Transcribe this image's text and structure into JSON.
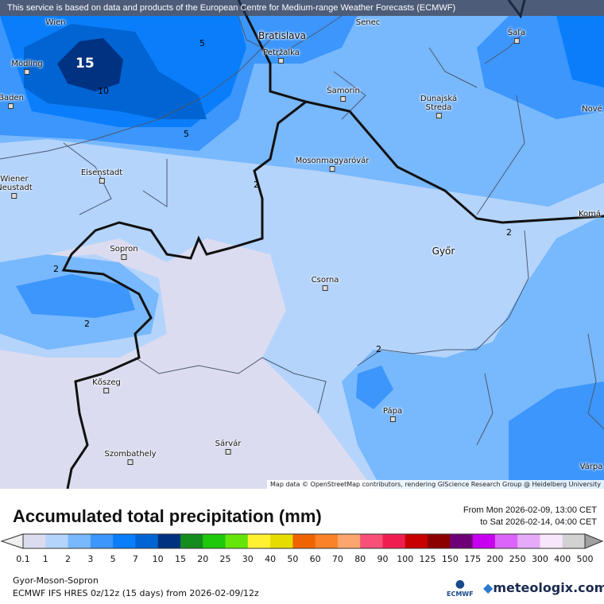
{
  "notice": "This service is based on data and products of the European Centre for Medium-range Weather Forecasts (ECMWF)",
  "attribution": "Map data © OpenStreetMap contributors, rendering GIScience Research Group @ Heidelberg University",
  "cities": [
    {
      "name": "Wien"
    },
    {
      "name": "Senec"
    },
    {
      "name": "Bratislava"
    },
    {
      "name": "Petržalka"
    },
    {
      "name": "Šaľa"
    },
    {
      "name": "Mödling"
    },
    {
      "name": "Baden"
    },
    {
      "name": "Šamorín"
    },
    {
      "name": "Dunajská\nStreda"
    },
    {
      "name": "Nové"
    },
    {
      "name": "Eisenstadt"
    },
    {
      "name": "Wiener\nNeustadt"
    },
    {
      "name": "Mosonmagyaróvár"
    },
    {
      "name": "Komá"
    },
    {
      "name": "Győr"
    },
    {
      "name": "Sopron"
    },
    {
      "name": "Csorna"
    },
    {
      "name": "Kőszeg"
    },
    {
      "name": "Pápa"
    },
    {
      "name": "Szombathely"
    },
    {
      "name": "Sárvár"
    },
    {
      "name": "Várpa"
    }
  ],
  "contour_labels": [
    "15",
    "10",
    "5",
    "5",
    "2",
    "2",
    "2",
    "2",
    "2"
  ],
  "title": "Accumulated total precipitation (mm)",
  "period": {
    "from": "From Mon 2026-02-09, 13:00 CET",
    "to": "to Sat 2026-02-14, 04:00 CET"
  },
  "legend": {
    "ticks": [
      "0.1",
      "1",
      "2",
      "3",
      "5",
      "7",
      "10",
      "15",
      "20",
      "25",
      "30",
      "40",
      "50",
      "60",
      "70",
      "80",
      "90",
      "100",
      "125",
      "150",
      "175",
      "200",
      "250",
      "300",
      "400",
      "500"
    ],
    "colors": [
      "#dcdcf0",
      "#b4d4fc",
      "#78b8fc",
      "#3c96fc",
      "#0a7efa",
      "#0064d2",
      "#003282",
      "#148c1e",
      "#1ec80a",
      "#64e60a",
      "#fff032",
      "#e6dc00",
      "#f06400",
      "#fa8228",
      "#fca56e",
      "#f85078",
      "#f01e50",
      "#c80000",
      "#8c0000",
      "#6e0078",
      "#c800f0",
      "#dc64fa",
      "#e6aaf8",
      "#f8e6fc",
      "#d2d2d2"
    ],
    "under_color": "#f0f0f0",
    "over_color": "#a0a0a0"
  },
  "region": "Gyor-Moson-Sopron",
  "model": "ECMWF IFS HRES 0z/12z (15 days) from  2026-02-09/12z",
  "logos": {
    "ecmwf": "ECMWF",
    "meteologix": "meteologix.com"
  }
}
